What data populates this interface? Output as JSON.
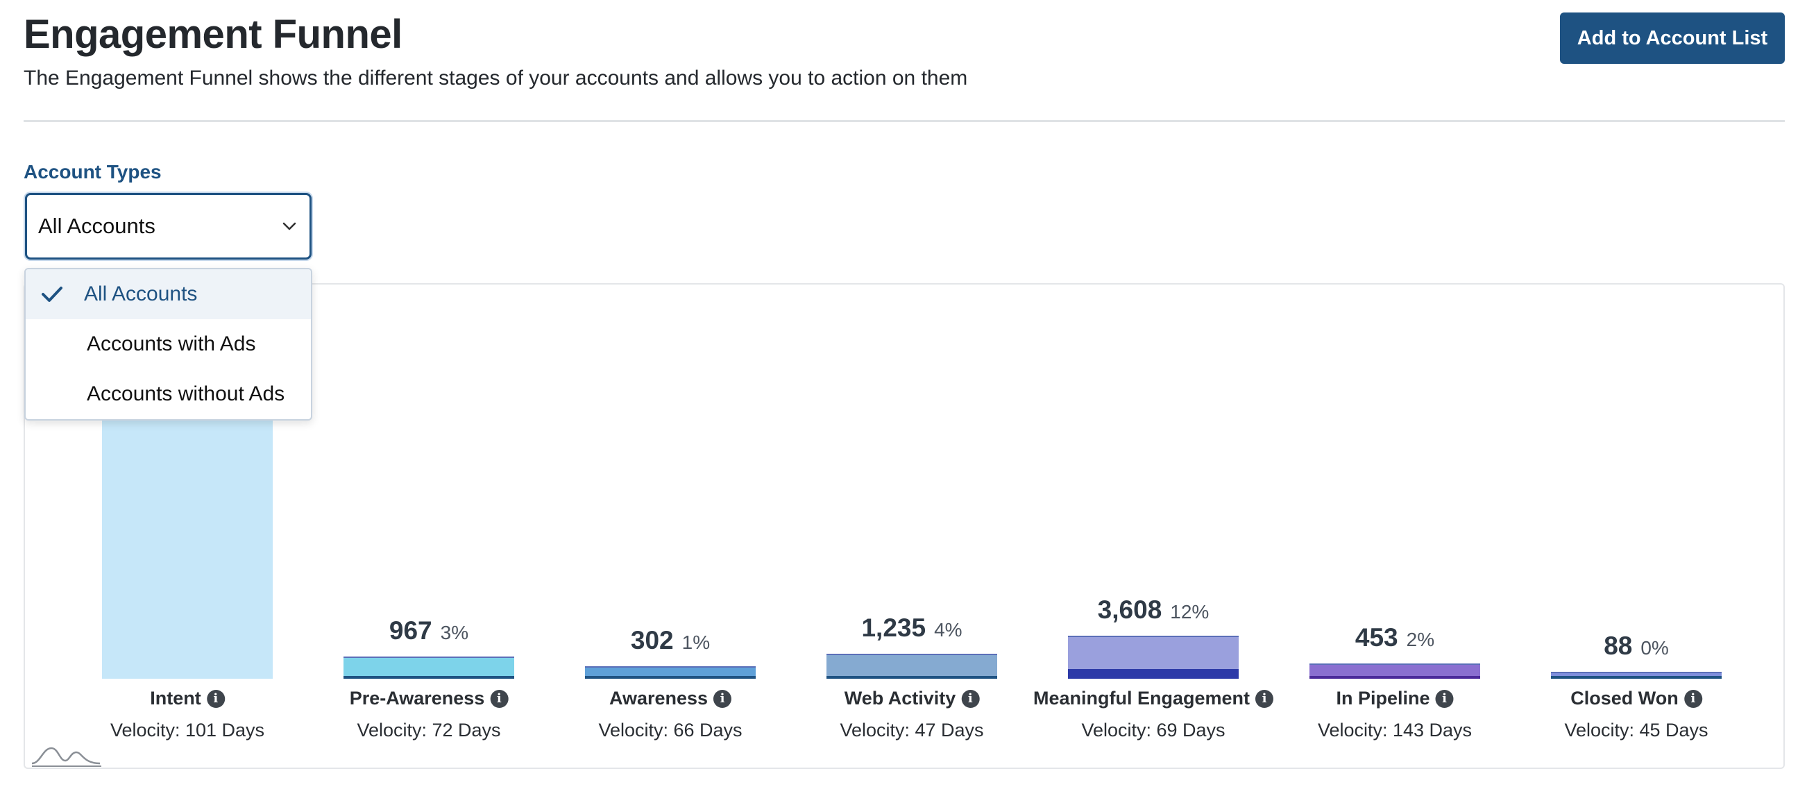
{
  "header": {
    "title": "Engagement Funnel",
    "subtitle": "The Engagement Funnel shows the different stages of your accounts and allows you to action on them",
    "add_button_label": "Add to Account List"
  },
  "filter": {
    "label": "Account Types",
    "selected": "All Accounts",
    "options": [
      "All Accounts",
      "Accounts with Ads",
      "Accounts without Ads"
    ]
  },
  "colors": {
    "primary": "#1e5282",
    "intent": "#c6e7f9",
    "pre_awareness": "#7dd3ea",
    "awareness_top": "#5ea0d8",
    "web_activity": "#85aad1",
    "meaningful_engagement": "#9aa0dd",
    "meaningful_engagement_dark": "#2d3aa8",
    "in_pipeline": "#8a6fd0",
    "closed_won": "#7f8fdc"
  },
  "stages": [
    {
      "name": "Intent",
      "velocity": "Velocity: 101 Days",
      "count": "",
      "percent": ""
    },
    {
      "name": "Pre-Awareness",
      "velocity": "Velocity: 72 Days",
      "count": "967",
      "percent": "3%"
    },
    {
      "name": "Awareness",
      "velocity": "Velocity: 66 Days",
      "count": "302",
      "percent": "1%"
    },
    {
      "name": "Web Activity",
      "velocity": "Velocity: 47 Days",
      "count": "1,235",
      "percent": "4%"
    },
    {
      "name": "Meaningful Engagement",
      "velocity": "Velocity: 69 Days",
      "count": "3,608",
      "percent": "12%"
    },
    {
      "name": "In Pipeline",
      "velocity": "Velocity: 143 Days",
      "count": "453",
      "percent": "2%"
    },
    {
      "name": "Closed Won",
      "velocity": "Velocity: 45 Days",
      "count": "88",
      "percent": "0%"
    }
  ],
  "chart_data": {
    "type": "bar",
    "categories": [
      "Intent",
      "Pre-Awareness",
      "Awareness",
      "Web Activity",
      "Meaningful Engagement",
      "In Pipeline",
      "Closed Won"
    ],
    "values": [
      null,
      967,
      302,
      1235,
      3608,
      453,
      88
    ],
    "percent": [
      null,
      3,
      1,
      4,
      12,
      2,
      0
    ],
    "velocity_days": [
      101,
      72,
      66,
      47,
      69,
      143,
      45
    ]
  }
}
